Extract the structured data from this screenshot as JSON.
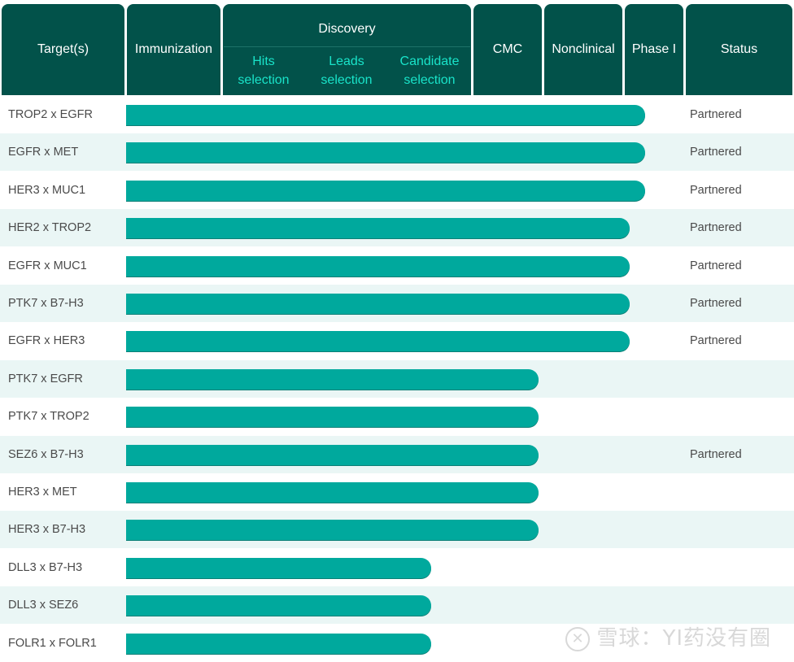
{
  "headers": {
    "target": "Target(s)",
    "immunization": "Immunization",
    "discovery": "Discovery",
    "hits": [
      "Hits",
      "selection"
    ],
    "leads": [
      "Leads",
      "selection"
    ],
    "candidate": [
      "Candidate",
      "selection"
    ],
    "cmc": "CMC",
    "nonclinical": "Nonclinical",
    "phase1": "Phase I",
    "status": "Status"
  },
  "colors": {
    "header_bg": "#02524a",
    "subheader_text": "#19e3c9",
    "bar": "#00a99d",
    "row_alt": "#eaf6f5"
  },
  "watermark": "雪球：YI药没有圈",
  "chart_data": {
    "type": "bar",
    "orientation": "horizontal",
    "stages": [
      "Immunization",
      "Hits selection",
      "Leads selection",
      "Candidate selection",
      "CMC",
      "Nonclinical",
      "Phase I"
    ],
    "categories": [
      "TROP2 x EGFR",
      "EGFR x MET",
      "HER3 x MUC1",
      "HER2 x TROP2",
      "EGFR x MUC1",
      "PTK7 x B7-H3",
      "EGFR x HER3",
      "PTK7 x EGFR",
      "PTK7 x TROP2",
      "SEZ6 x B7-H3",
      "HER3 x MET",
      "HER3 x B7-H3",
      "DLL3 x B7-H3",
      "DLL3 x SEZ6",
      "FOLR1 x FOLR1"
    ],
    "values": [
      6.8,
      6.8,
      6.8,
      6.6,
      6.6,
      6.6,
      6.6,
      5.4,
      5.4,
      5.4,
      5.4,
      5.4,
      4.0,
      4.0,
      4.0
    ],
    "status": [
      "Partnered",
      "Partnered",
      "Partnered",
      "Partnered",
      "Partnered",
      "Partnered",
      "Partnered",
      "",
      "",
      "Partnered",
      "",
      "",
      "",
      "",
      ""
    ],
    "xlim": [
      0,
      7
    ]
  }
}
